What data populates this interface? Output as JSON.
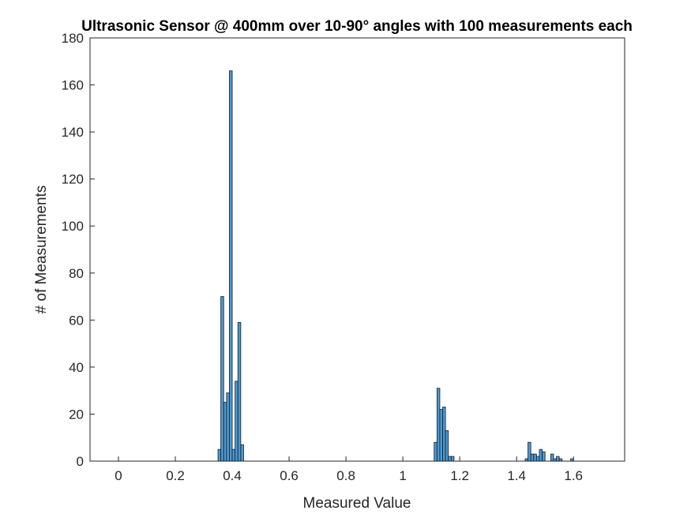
{
  "chart_data": {
    "type": "bar",
    "title": "Ultrasonic Sensor @ 400mm over 10-90° angles with 100 measurements each",
    "xlabel": "Measured Value",
    "ylabel": "# of Measurements",
    "xlim": [
      -0.1,
      1.78
    ],
    "ylim": [
      0,
      180
    ],
    "xticks": [
      "0",
      "0.2",
      "0.4",
      "0.6",
      "0.8",
      "1",
      "1.2",
      "1.4",
      "1.6"
    ],
    "yticks": [
      "0",
      "20",
      "40",
      "60",
      "80",
      "100",
      "120",
      "140",
      "160",
      "180"
    ],
    "grid": false,
    "legend": "none",
    "bar_color": "#4a9ad4",
    "bar_edge_color": "#1a1a1a",
    "bin_width": 0.01,
    "x_range": [
      0,
      1.7
    ],
    "bins": [
      {
        "x": 0.36,
        "value": 5
      },
      {
        "x": 0.37,
        "value": 70
      },
      {
        "x": 0.38,
        "value": 25
      },
      {
        "x": 0.39,
        "value": 29
      },
      {
        "x": 0.4,
        "value": 166
      },
      {
        "x": 0.41,
        "value": 5
      },
      {
        "x": 0.42,
        "value": 34
      },
      {
        "x": 0.43,
        "value": 59
      },
      {
        "x": 0.44,
        "value": 7
      },
      {
        "x": 1.12,
        "value": 8
      },
      {
        "x": 1.13,
        "value": 31
      },
      {
        "x": 1.14,
        "value": 22
      },
      {
        "x": 1.15,
        "value": 23
      },
      {
        "x": 1.16,
        "value": 13
      },
      {
        "x": 1.17,
        "value": 2
      },
      {
        "x": 1.18,
        "value": 2
      },
      {
        "x": 1.44,
        "value": 1
      },
      {
        "x": 1.45,
        "value": 8
      },
      {
        "x": 1.46,
        "value": 3
      },
      {
        "x": 1.47,
        "value": 3
      },
      {
        "x": 1.48,
        "value": 2
      },
      {
        "x": 1.49,
        "value": 5
      },
      {
        "x": 1.5,
        "value": 4
      },
      {
        "x": 1.53,
        "value": 3
      },
      {
        "x": 1.54,
        "value": 1
      },
      {
        "x": 1.55,
        "value": 2
      },
      {
        "x": 1.56,
        "value": 1
      },
      {
        "x": 1.6,
        "value": 1
      }
    ]
  }
}
